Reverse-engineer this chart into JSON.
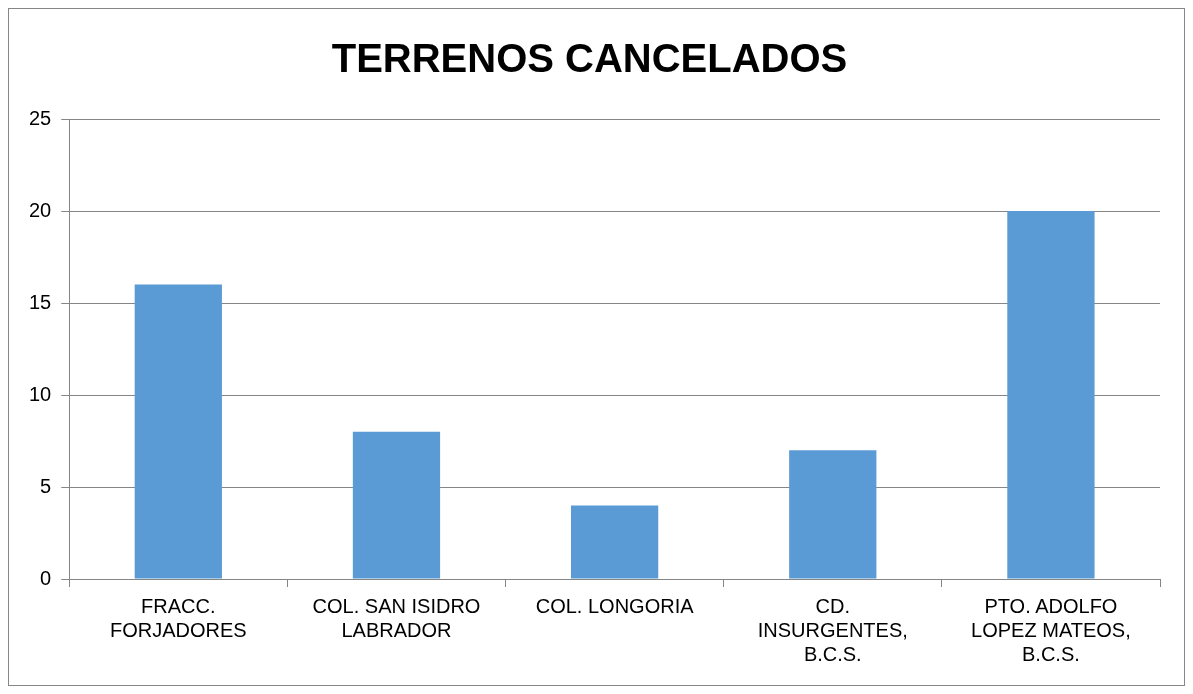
{
  "chart_data": {
    "type": "bar",
    "title": "TERRENOS CANCELADOS",
    "categories": [
      "FRACC. FORJADORES",
      "COL. SAN ISIDRO LABRADOR",
      "COL. LONGORIA",
      "CD. INSURGENTES, B.C.S.",
      "PTO. ADOLFO LOPEZ MATEOS, B.C.S."
    ],
    "values": [
      16,
      8,
      4,
      7,
      20
    ],
    "color": "#5b9bd5",
    "ylim": [
      0,
      25
    ],
    "yticks": [
      0,
      5,
      10,
      15,
      20,
      25
    ],
    "grid": "y",
    "legend": false
  }
}
